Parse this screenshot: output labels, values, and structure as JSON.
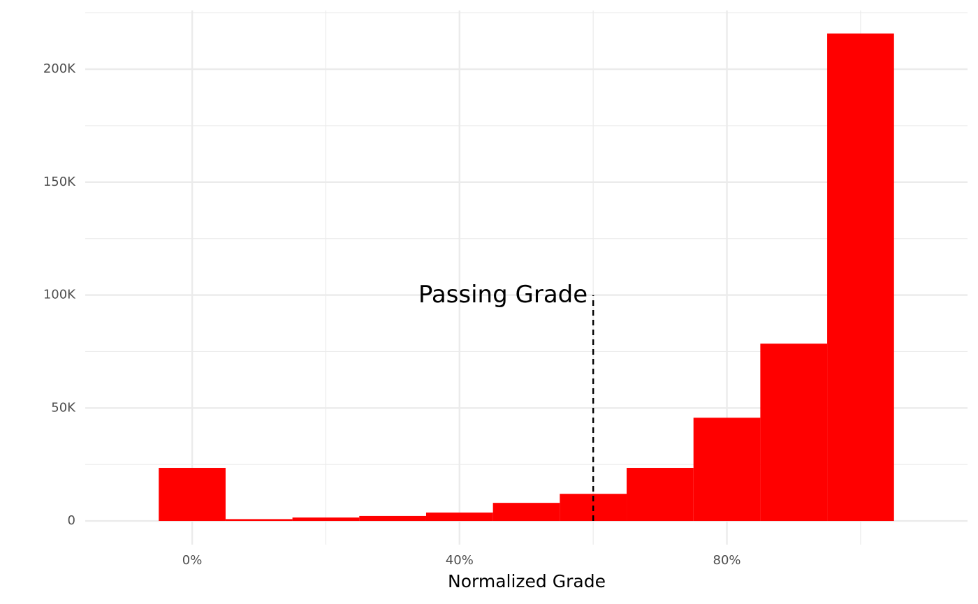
{
  "chart_data": {
    "type": "histogram",
    "x_label": "Normalized Grade",
    "bins": [
      -5,
      5,
      15,
      25,
      35,
      45,
      55,
      65,
      75,
      85,
      95,
      105
    ],
    "counts": [
      23500,
      800,
      1500,
      2200,
      3700,
      8000,
      12000,
      23500,
      45700,
      78500,
      215800
    ],
    "color": "#ff0000",
    "xlim": [
      -16,
      116
    ],
    "xticks": [
      {
        "value": 0,
        "label": "0%"
      },
      {
        "value": 40,
        "label": "40%"
      },
      {
        "value": 80,
        "label": "80%"
      }
    ],
    "xminor_ticks": [
      20,
      60,
      100
    ],
    "ylim": [
      -10500,
      226000
    ],
    "yticks": [
      0,
      {
        "value": 50000,
        "label": "50K"
      },
      {
        "value": 100000,
        "label": "100K"
      },
      {
        "value": 150000,
        "label": "150K"
      },
      {
        "value": 200000,
        "label": "200K"
      }
    ],
    "yminor_ticks": [
      25000,
      75000,
      125000,
      175000,
      225000
    ],
    "grid": true,
    "reference_line": {
      "x": 60,
      "y_end": 100000,
      "label": "Passing Grade"
    }
  }
}
